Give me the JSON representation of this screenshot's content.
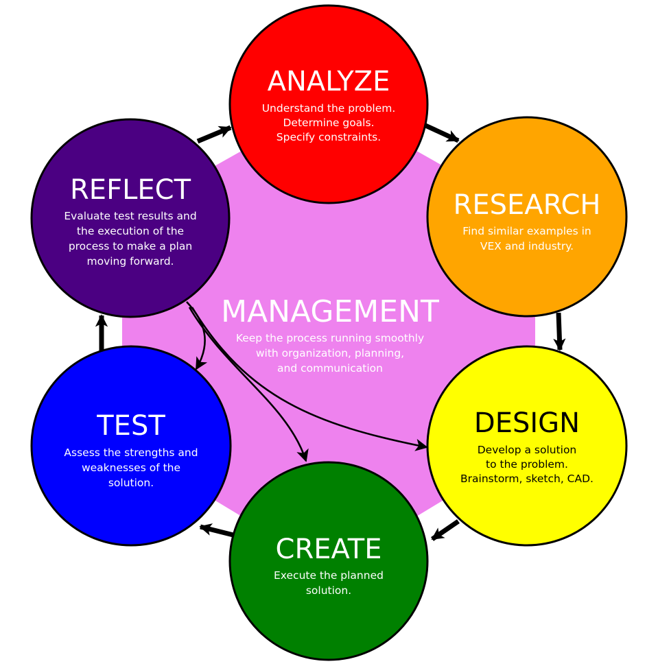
{
  "colors": {
    "background": "#ffffff",
    "hub": "#ee82ee",
    "outline": "#000000",
    "arrow": "#000000"
  },
  "hub": {
    "title": "MANAGEMENT",
    "lines": [
      "Keep the process running smoothly",
      "with organization, planning,",
      "and communication"
    ]
  },
  "stages": [
    {
      "id": "analyze",
      "title": "ANALYZE",
      "lines": [
        "Understand the problem.",
        "Determine goals.",
        "Specify constraints."
      ],
      "fill": "#ff0000",
      "text_color": "#ffffff"
    },
    {
      "id": "research",
      "title": "RESEARCH",
      "lines": [
        "Find similar examples in",
        "VEX and industry."
      ],
      "fill": "#ffa500",
      "text_color": "#ffffff"
    },
    {
      "id": "design",
      "title": "DESIGN",
      "lines": [
        "Develop a solution",
        "to the problem.",
        "Brainstorm, sketch, CAD."
      ],
      "fill": "#ffff00",
      "text_color": "#000000"
    },
    {
      "id": "create",
      "title": "CREATE",
      "lines": [
        "Execute the planned",
        "solution."
      ],
      "fill": "#008000",
      "text_color": "#ffffff"
    },
    {
      "id": "test",
      "title": "TEST",
      "lines": [
        "Assess the strengths and",
        "weaknesses of the",
        "solution."
      ],
      "fill": "#0000ff",
      "text_color": "#ffffff"
    },
    {
      "id": "reflect",
      "title": "REFLECT",
      "lines": [
        "Evaluate test results and",
        "the execution of the",
        "process to make a plan",
        "moving forward."
      ],
      "fill": "#4b0082",
      "text_color": "#ffffff"
    }
  ],
  "cycle": [
    "analyze",
    "research",
    "design",
    "create",
    "test",
    "reflect",
    "analyze"
  ],
  "feedback_links": [
    {
      "from": "reflect",
      "to": "test"
    },
    {
      "from": "reflect",
      "to": "create"
    },
    {
      "from": "reflect",
      "to": "design"
    }
  ]
}
